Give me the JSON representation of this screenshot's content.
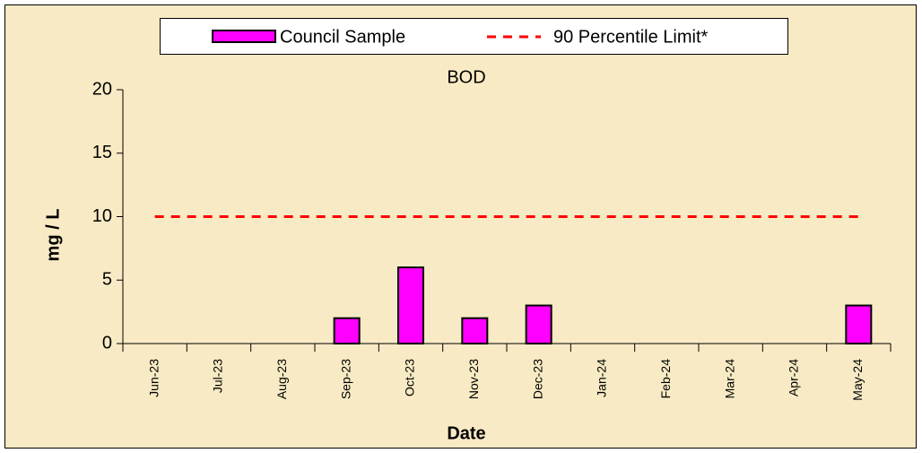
{
  "chart_data": {
    "type": "bar",
    "title": "BOD",
    "x_label": "Date",
    "y_label": "mg / L",
    "categories": [
      "Jun-23",
      "Jul-23",
      "Aug-23",
      "Sep-23",
      "Oct-23",
      "Nov-23",
      "Dec-23",
      "Jan-24",
      "Feb-24",
      "Mar-24",
      "Apr-24",
      "May-24"
    ],
    "series": [
      {
        "name": "Council Sample",
        "type": "bar",
        "color": "#ff00ff",
        "values": [
          null,
          null,
          null,
          2,
          6,
          2,
          3,
          null,
          null,
          null,
          null,
          3
        ]
      },
      {
        "name": "90 Percentile Limit*",
        "type": "line",
        "dashed": true,
        "color": "#ff0000",
        "values": [
          10,
          10,
          10,
          10,
          10,
          10,
          10,
          10,
          10,
          10,
          10,
          10
        ]
      }
    ],
    "ylim": [
      0,
      20
    ],
    "yticks": [
      0,
      5,
      10,
      15,
      20
    ],
    "grid": false,
    "legend": "top"
  }
}
